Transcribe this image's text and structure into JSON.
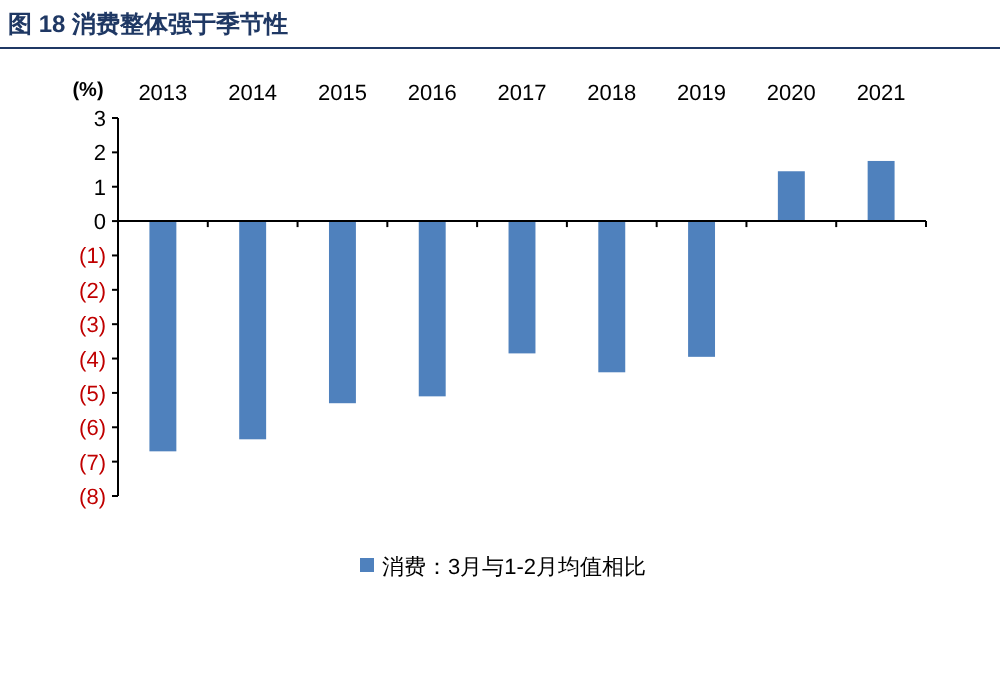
{
  "chart_data": {
    "type": "bar",
    "title": "图 18  消费整体强于季节性",
    "ylabel": "(%)",
    "categories": [
      "2013",
      "2014",
      "2015",
      "2016",
      "2017",
      "2018",
      "2019",
      "2020",
      "2021"
    ],
    "series": [
      {
        "name": "消费：3月与1-2月均值相比",
        "color": "#4f81bd",
        "values": [
          -6.7,
          -6.35,
          -5.3,
          -5.1,
          -3.85,
          -4.4,
          -3.95,
          1.45,
          1.75
        ]
      }
    ],
    "ylim": [
      -8,
      3
    ],
    "yticks": [
      3,
      2,
      1,
      0,
      {
        "value": -1,
        "label": "(1)"
      },
      {
        "value": -2,
        "label": "(2)"
      },
      {
        "value": -3,
        "label": "(3)"
      },
      {
        "value": -4,
        "label": "(4)"
      },
      {
        "value": -5,
        "label": "(5)"
      },
      {
        "value": -6,
        "label": "(6)"
      },
      {
        "value": -7,
        "label": "(7)"
      },
      {
        "value": -8,
        "label": "(8)"
      }
    ],
    "legend": "bottom"
  }
}
